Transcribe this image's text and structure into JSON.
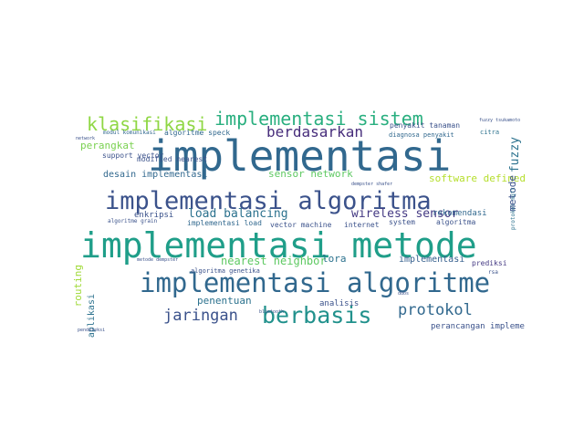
{
  "wordcloud": {
    "words": {
      "implementasi": "implementasi",
      "implementasi_metode": "implementasi metode",
      "implementasi_algoritma": "implementasi algoritma",
      "implementasi_algoritme": "implementasi algoritme",
      "berbasis": "berbasis",
      "klasifikasi": "klasifikasi",
      "implementasi_sistem": "implementasi sistem",
      "berdasarkan": "berdasarkan",
      "jaringan": "jaringan",
      "protokol": "protokol",
      "load_balancing": "load balancing",
      "wireless_sensor": "wireless sensor",
      "nearest_neighbor": "nearest neighbor",
      "software_defined": "software defined",
      "sensor_network": "sensor network",
      "fuzzy": "fuzzy",
      "metode": "metode",
      "perangkat": "perangkat",
      "desain_implementasi": "desain implementasi",
      "penentuan": "penentuan",
      "lora": "lora",
      "implementasi_sm": "implementasi",
      "perancangan_implementasi": "perancangan implementasi",
      "routing": "routing",
      "aplikasi": "aplikasi",
      "rekomendasi": "rekomendasi",
      "analisis": "analisis",
      "prediksi": "prediksi",
      "support_vector": "support vector",
      "modul_komunikasi": "modul komunikasi",
      "algoritme_speck": "algoritme speck",
      "penyakit_tanaman": "penyakit tanaman",
      "diagnosa_penyakit": "diagnosa penyakit",
      "modified_nearest": "modified nearest",
      "enkripsi": "enkripsi",
      "algoritme_grain": "algoritme grain",
      "implementasi_load": "implementasi load",
      "vector_machine": "vector machine",
      "internet": "internet",
      "system": "system",
      "algoritma_sm": "algoritma",
      "algoritma_genetika": "algoritma genetika",
      "metode_dempster": "metode dempster",
      "citra": "citra",
      "fuzzy_tsukamoto": "fuzzy tsukamoto",
      "protokol_mqtt": "protokol mqtt",
      "rsa": "rsa",
      "pendeteksi": "pendeteksi",
      "network": "network",
      "dempster_shafer": "dempster shafer",
      "bluetooth": "bluetooth",
      "ddos": "ddos"
    }
  }
}
